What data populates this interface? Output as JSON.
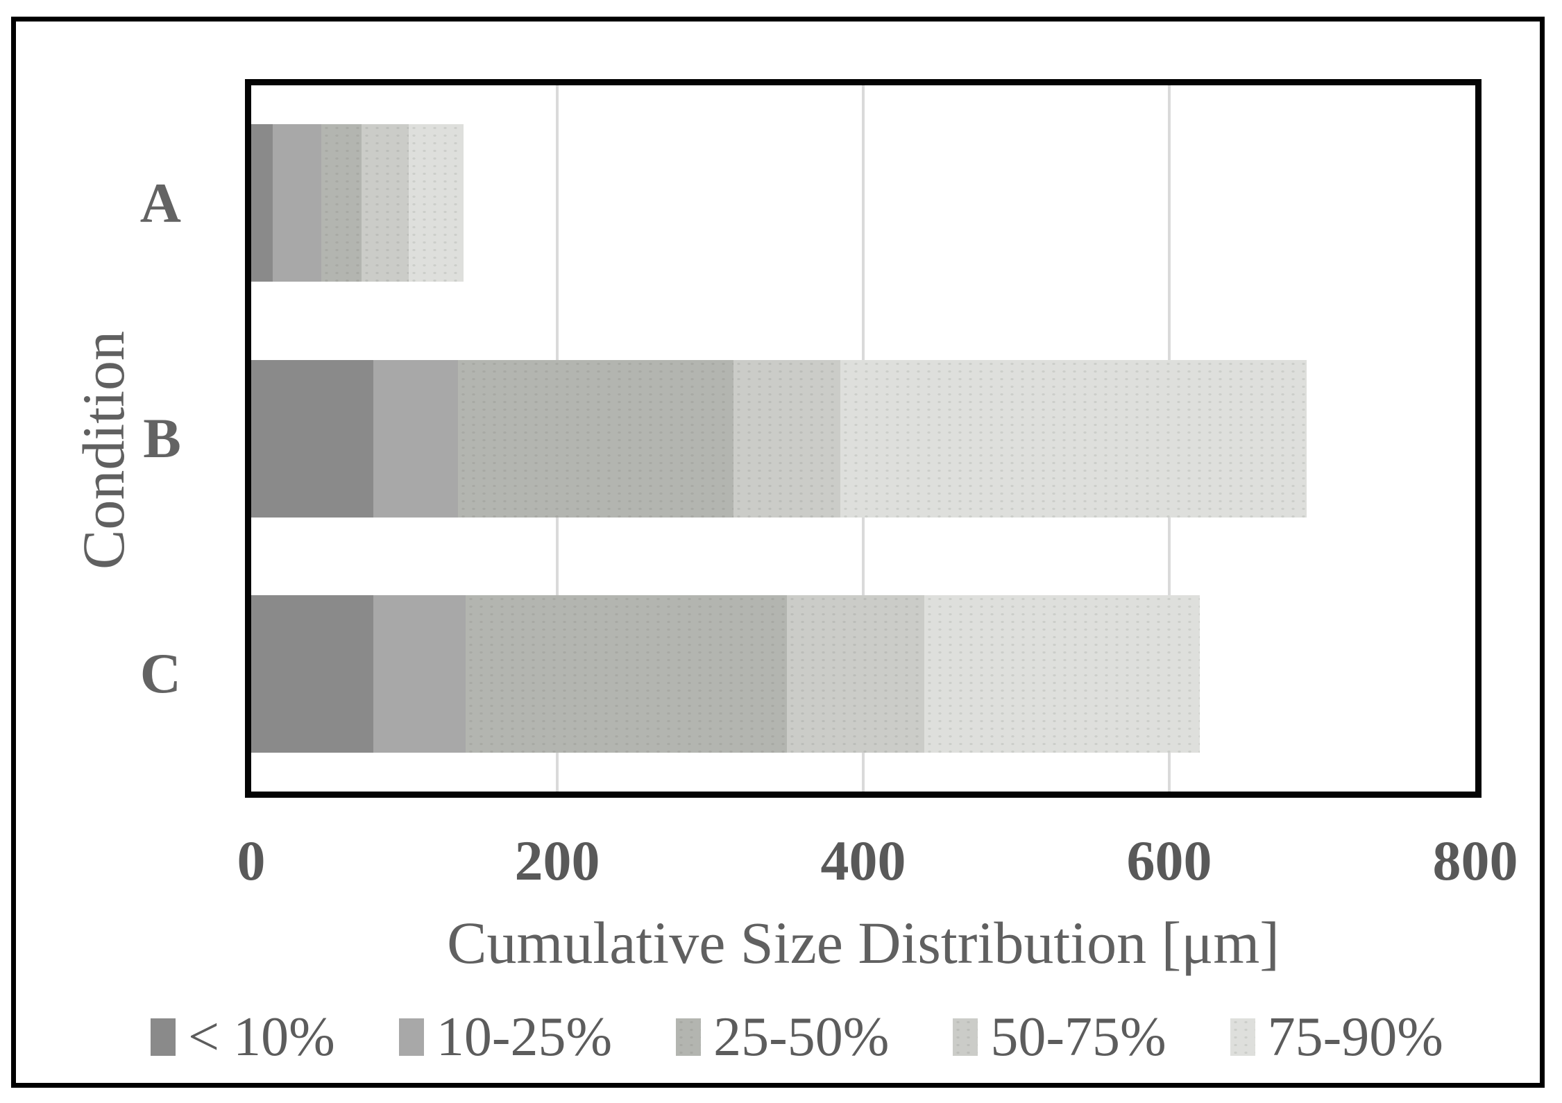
{
  "figure": {
    "background": "#ffffff",
    "frame_color": "#000000",
    "text_color": "#5f5f5f",
    "grid_color": "#dadada"
  },
  "chart_data": {
    "type": "bar",
    "orientation": "horizontal",
    "stacked": true,
    "title": "",
    "xlabel": "Cumulative Size Distribution [μm]",
    "ylabel": "Condition",
    "categories": [
      "A",
      "B",
      "C"
    ],
    "series": [
      {
        "name": "< 10%",
        "color": "#8a8a8a",
        "pattern": false,
        "values": [
          14,
          80,
          80
        ]
      },
      {
        "name": "10-25%",
        "color": "#a8a8a8",
        "pattern": false,
        "values": [
          32,
          55,
          60
        ]
      },
      {
        "name": "25-50%",
        "color": "#b3b5b0",
        "pattern": true,
        "values": [
          26,
          180,
          210
        ]
      },
      {
        "name": "50-75%",
        "color": "#cbccc8",
        "pattern": true,
        "values": [
          31,
          70,
          90
        ]
      },
      {
        "name": "75-90%",
        "color": "#dedfdc",
        "pattern": true,
        "values": [
          36,
          305,
          180
        ]
      }
    ],
    "cumulative_boundaries": {
      "A": [
        14,
        46,
        72,
        103,
        139
      ],
      "B": [
        80,
        135,
        315,
        385,
        690
      ],
      "C": [
        80,
        140,
        350,
        440,
        620
      ]
    },
    "x_axis": {
      "min": 0,
      "max": 800,
      "ticks": [
        0,
        200,
        400,
        600,
        800
      ],
      "gridlines": [
        200,
        400,
        600
      ]
    },
    "y_axis": {
      "title": "Condition"
    },
    "legend_position": "bottom",
    "grid": true
  }
}
